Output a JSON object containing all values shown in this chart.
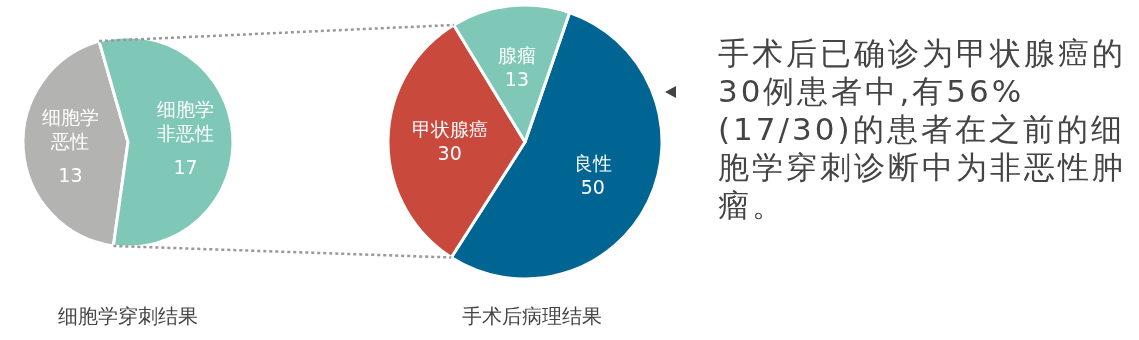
{
  "chart_data": [
    {
      "type": "pie",
      "title": "细胞学穿刺结果",
      "categories": [
        "细胞学恶性",
        "细胞学非恶性"
      ],
      "values": [
        13,
        17
      ],
      "colors": [
        "#b3b3b2",
        "#7fc8b8"
      ],
      "data_labels": true
    },
    {
      "type": "pie",
      "title": "手术后病理结果",
      "categories": [
        "良性",
        "甲状腺癌",
        "腺瘤"
      ],
      "values": [
        50,
        30,
        13
      ],
      "colors": [
        "#006592",
        "#c94a3d",
        "#7fc8b8"
      ],
      "data_labels": true
    },
    {
      "type": "other",
      "annotations": [
        "手术后已确诊为甲状腺癌的30例患者中,有56%(17/30)的患者在之前的细胞学穿刺诊断中为非恶性肿瘤。"
      ]
    }
  ]
}
